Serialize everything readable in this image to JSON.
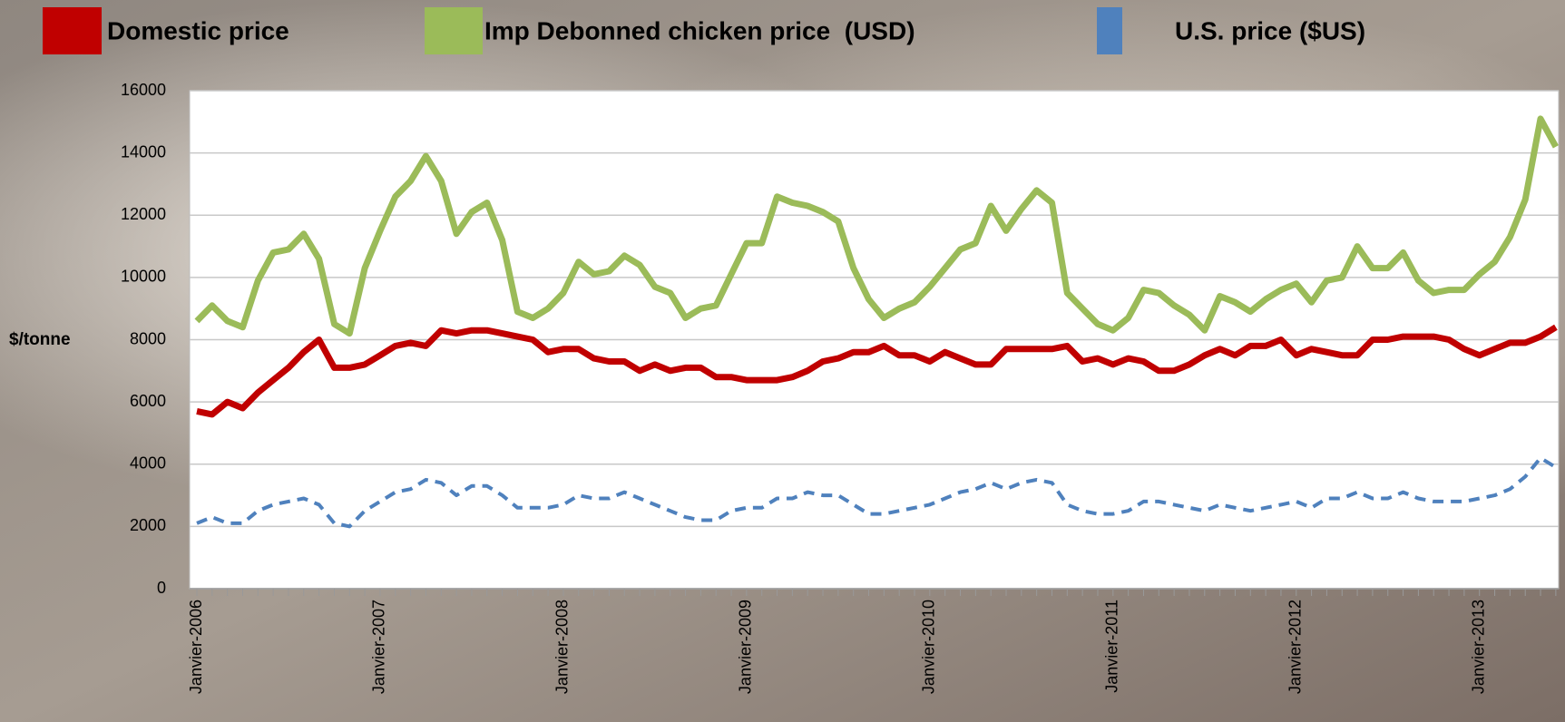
{
  "chart_data": {
    "type": "line",
    "y_label": "$/tonne",
    "categories": [
      "Janvier-2006",
      null,
      null,
      null,
      null,
      null,
      null,
      null,
      null,
      null,
      null,
      null,
      "Janvier-2007",
      null,
      null,
      null,
      null,
      null,
      null,
      null,
      null,
      null,
      null,
      null,
      "Janvier-2008",
      null,
      null,
      null,
      null,
      null,
      null,
      null,
      null,
      null,
      null,
      null,
      "Janvier-2009",
      null,
      null,
      null,
      null,
      null,
      null,
      null,
      null,
      null,
      null,
      null,
      "Janvier-2010",
      null,
      null,
      null,
      null,
      null,
      null,
      null,
      null,
      null,
      null,
      null,
      "Janvier-2011",
      null,
      null,
      null,
      null,
      null,
      null,
      null,
      null,
      null,
      null,
      null,
      "Janvier-2012",
      null,
      null,
      null,
      null,
      null,
      null,
      null,
      null,
      null,
      null,
      null,
      "Janvier-2013",
      null,
      null,
      null,
      null,
      null
    ],
    "series": [
      {
        "name": "Domestic price",
        "color": "#c00000",
        "dash": "solid",
        "values": [
          5700,
          5600,
          6000,
          5800,
          6300,
          6700,
          7100,
          7600,
          8000,
          7100,
          7100,
          7200,
          7500,
          7800,
          7900,
          7800,
          8300,
          8200,
          8300,
          8300,
          8200,
          8100,
          8000,
          7600,
          7700,
          7700,
          7400,
          7300,
          7300,
          7000,
          7200,
          7000,
          7100,
          7100,
          6800,
          6800,
          6700,
          6700,
          6700,
          6800,
          7000,
          7300,
          7400,
          7600,
          7600,
          7800,
          7500,
          7500,
          7300,
          7600,
          7400,
          7200,
          7200,
          7700,
          7700,
          7700,
          7700,
          7800,
          7300,
          7400,
          7200,
          7400,
          7300,
          7000,
          7000,
          7200,
          7500,
          7700,
          7500,
          7800,
          7800,
          8000,
          7500,
          7700,
          7600,
          7500,
          7500,
          8000,
          8000,
          8100,
          8100,
          8100,
          8000,
          7700,
          7500,
          7700,
          7900,
          7900,
          8100,
          8400
        ]
      },
      {
        "name": "Imp Debonned chicken price  (USD)",
        "color": "#9bbb59",
        "dash": "solid",
        "values": [
          8600,
          9100,
          8600,
          8400,
          9900,
          10800,
          10900,
          11400,
          10600,
          8500,
          8200,
          10300,
          11500,
          12600,
          13100,
          13900,
          13100,
          11400,
          12100,
          12400,
          11200,
          8900,
          8700,
          9000,
          9500,
          10500,
          10100,
          10200,
          10700,
          10400,
          9700,
          9500,
          8700,
          9000,
          9100,
          10100,
          11100,
          11100,
          12600,
          12400,
          12300,
          12100,
          11800,
          10300,
          9300,
          8700,
          9000,
          9200,
          9700,
          10300,
          10900,
          11100,
          12300,
          11500,
          12200,
          12800,
          12400,
          9500,
          9000,
          8500,
          8300,
          8700,
          9600,
          9500,
          9100,
          8800,
          8300,
          9400,
          9200,
          8900,
          9300,
          9600,
          9800,
          9200,
          9900,
          10000,
          11000,
          10300,
          10300,
          10800,
          9900,
          9500,
          9600,
          9600,
          10100,
          10500,
          11300,
          12500,
          15100,
          14200
        ]
      },
      {
        "name": "U.S. price ($US)",
        "color": "#4f81bd",
        "dash": "dashed",
        "values": [
          2100,
          2300,
          2100,
          2100,
          2500,
          2700,
          2800,
          2900,
          2700,
          2100,
          2000,
          2500,
          2800,
          3100,
          3200,
          3500,
          3400,
          3000,
          3300,
          3300,
          3000,
          2600,
          2600,
          2600,
          2700,
          3000,
          2900,
          2900,
          3100,
          2900,
          2700,
          2500,
          2300,
          2200,
          2200,
          2500,
          2600,
          2600,
          2900,
          2900,
          3100,
          3000,
          3000,
          2700,
          2400,
          2400,
          2500,
          2600,
          2700,
          2900,
          3100,
          3200,
          3400,
          3200,
          3400,
          3500,
          3400,
          2700,
          2500,
          2400,
          2400,
          2500,
          2800,
          2800,
          2700,
          2600,
          2500,
          2700,
          2600,
          2500,
          2600,
          2700,
          2800,
          2600,
          2900,
          2900,
          3100,
          2900,
          2900,
          3100,
          2900,
          2800,
          2800,
          2800,
          2900,
          3000,
          3200,
          3600,
          4200,
          3900
        ]
      }
    ],
    "ylim": [
      0,
      16000
    ],
    "yticks": [
      0,
      2000,
      4000,
      6000,
      8000,
      10000,
      12000,
      14000,
      16000
    ],
    "grid": true
  }
}
